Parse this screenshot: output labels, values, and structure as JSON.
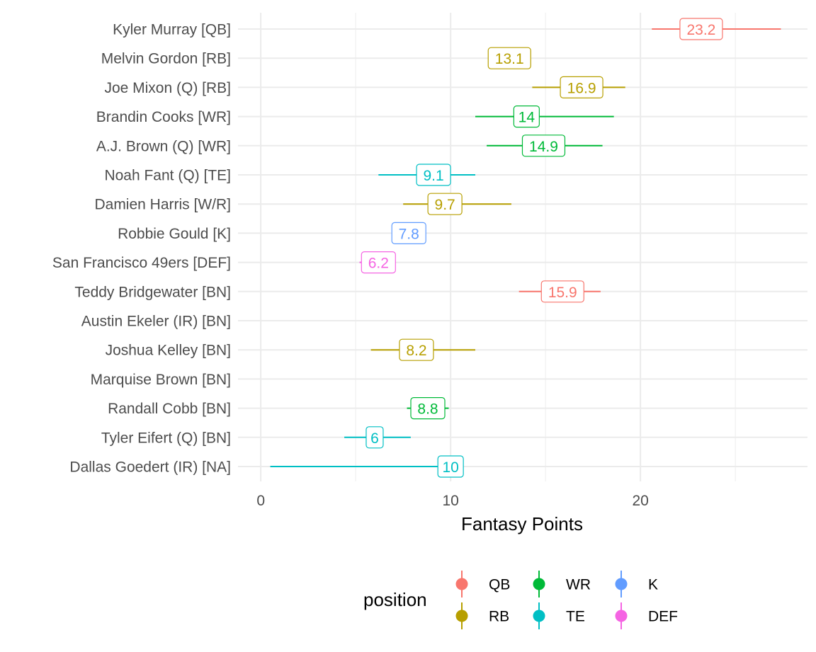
{
  "chart_data": {
    "type": "pointrange",
    "title": "",
    "xlabel": "Fantasy Points",
    "ylabel": "",
    "xlim": [
      -1.2,
      28.8
    ],
    "x_ticks": [
      0,
      10,
      20
    ],
    "grid": true,
    "legend": {
      "title": "position",
      "placement": "bottom",
      "entries": [
        {
          "name": "QB",
          "color": "#F8766D"
        },
        {
          "name": "RB",
          "color": "#B79F00"
        },
        {
          "name": "WR",
          "color": "#00BA38"
        },
        {
          "name": "TE",
          "color": "#00BFC4"
        },
        {
          "name": "K",
          "color": "#619CFF"
        },
        {
          "name": "DEF",
          "color": "#F564E3"
        }
      ]
    },
    "rows": [
      {
        "player": "Kyler Murray [QB]",
        "position": "QB",
        "value": 23.2,
        "label": "23.2",
        "low": 20.6,
        "high": 27.4
      },
      {
        "player": "Melvin Gordon [RB]",
        "position": "RB",
        "value": 13.1,
        "label": "13.1",
        "low": 12.0,
        "high": 13.6
      },
      {
        "player": "Joe Mixon (Q) [RB]",
        "position": "RB",
        "value": 16.9,
        "label": "16.9",
        "low": 14.3,
        "high": 19.2
      },
      {
        "player": "Brandin Cooks [WR]",
        "position": "WR",
        "value": 14,
        "label": "14",
        "low": 11.3,
        "high": 18.6
      },
      {
        "player": "A.J. Brown (Q) [WR]",
        "position": "WR",
        "value": 14.9,
        "label": "14.9",
        "low": 11.9,
        "high": 18.0
      },
      {
        "player": "Noah Fant (Q) [TE]",
        "position": "TE",
        "value": 9.1,
        "label": "9.1",
        "low": 6.2,
        "high": 11.3
      },
      {
        "player": "Damien Harris [W/R]",
        "position": "RB",
        "value": 9.7,
        "label": "9.7",
        "low": 7.5,
        "high": 13.2
      },
      {
        "player": "Robbie Gould [K]",
        "position": "K",
        "value": 7.8,
        "label": "7.8",
        "low": 7.0,
        "high": 8.1
      },
      {
        "player": "San Francisco 49ers [DEF]",
        "position": "DEF",
        "value": 6.2,
        "label": "6.2",
        "low": 5.2,
        "high": 6.6
      },
      {
        "player": "Teddy Bridgewater [BN]",
        "position": "QB",
        "value": 15.9,
        "label": "15.9",
        "low": 13.6,
        "high": 17.9
      },
      {
        "player": "Austin Ekeler (IR) [BN]",
        "position": null,
        "value": null,
        "label": "",
        "low": null,
        "high": null
      },
      {
        "player": "Joshua Kelley [BN]",
        "position": "RB",
        "value": 8.2,
        "label": "8.2",
        "low": 5.8,
        "high": 11.3
      },
      {
        "player": "Marquise Brown [BN]",
        "position": null,
        "value": null,
        "label": "",
        "low": null,
        "high": null
      },
      {
        "player": "Randall Cobb [BN]",
        "position": "WR",
        "value": 8.8,
        "label": "8.8",
        "low": 7.7,
        "high": 9.9
      },
      {
        "player": "Tyler Eifert (Q) [BN]",
        "position": "TE",
        "value": 6,
        "label": "6",
        "low": 4.4,
        "high": 7.9
      },
      {
        "player": "Dallas Goedert (IR) [NA]",
        "position": "TE",
        "value": 10,
        "label": "10",
        "low": 0.5,
        "high": 10.2
      }
    ]
  }
}
